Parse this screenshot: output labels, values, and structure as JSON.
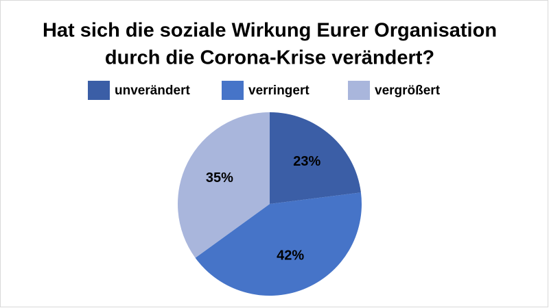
{
  "chart_data": {
    "type": "pie",
    "title": [
      "Hat sich die soziale Wirkung Eurer Organisation",
      "durch die Corona-Krise verändert?"
    ],
    "categories": [
      "unverändert",
      "verringert",
      "vergrößert"
    ],
    "values": [
      23,
      42,
      35
    ],
    "value_labels": [
      "23%",
      "42%",
      "35%"
    ],
    "colors": [
      "#3b5ea6",
      "#4674c8",
      "#a9b6dc"
    ],
    "legend": "top"
  }
}
